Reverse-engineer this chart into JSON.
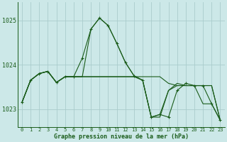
{
  "title": "Graphe pression niveau de la mer (hPa)",
  "bg_color": "#cce8e8",
  "grid_color": "#aacccc",
  "line_color": "#1a5c1a",
  "xlim": [
    -0.5,
    23.5
  ],
  "ylim": [
    1022.6,
    1025.4
  ],
  "yticks": [
    1023,
    1024,
    1025
  ],
  "xticks": [
    0,
    1,
    2,
    3,
    4,
    5,
    6,
    7,
    8,
    9,
    10,
    11,
    12,
    13,
    14,
    15,
    16,
    17,
    18,
    19,
    20,
    21,
    22,
    23
  ],
  "series1": [
    1023.15,
    1023.65,
    1023.8,
    1023.85,
    1023.6,
    1023.73,
    1023.73,
    1024.15,
    1024.8,
    1025.05,
    1024.88,
    1024.48,
    1024.05,
    1023.75,
    1023.65,
    1022.82,
    1022.88,
    1022.82,
    1023.42,
    1023.58,
    1023.53,
    1023.53,
    1023.12,
    1022.75
  ],
  "series2": [
    1023.15,
    1023.65,
    1023.8,
    1023.85,
    1023.6,
    1023.73,
    1023.73,
    1023.73,
    1023.73,
    1023.73,
    1023.73,
    1023.73,
    1023.73,
    1023.73,
    1023.73,
    1023.73,
    1023.73,
    1023.58,
    1023.53,
    1023.53,
    1023.53,
    1023.53,
    1023.53,
    1022.75
  ],
  "series3": [
    1023.15,
    1023.65,
    1023.8,
    1023.85,
    1023.6,
    1023.73,
    1023.73,
    1023.73,
    1023.73,
    1023.73,
    1023.73,
    1023.73,
    1023.73,
    1023.73,
    1023.65,
    1022.82,
    1022.82,
    1023.42,
    1023.53,
    1023.53,
    1023.53,
    1023.12,
    1023.12,
    1022.75
  ],
  "series4": [
    1023.15,
    1023.65,
    1023.8,
    1023.85,
    1023.6,
    1023.73,
    1023.73,
    1023.73,
    1024.8,
    1025.05,
    1024.88,
    1024.48,
    1024.05,
    1023.75,
    1023.65,
    1022.82,
    1022.88,
    1023.42,
    1023.58,
    1023.53,
    1023.53,
    1023.53,
    1023.53,
    1022.75
  ]
}
